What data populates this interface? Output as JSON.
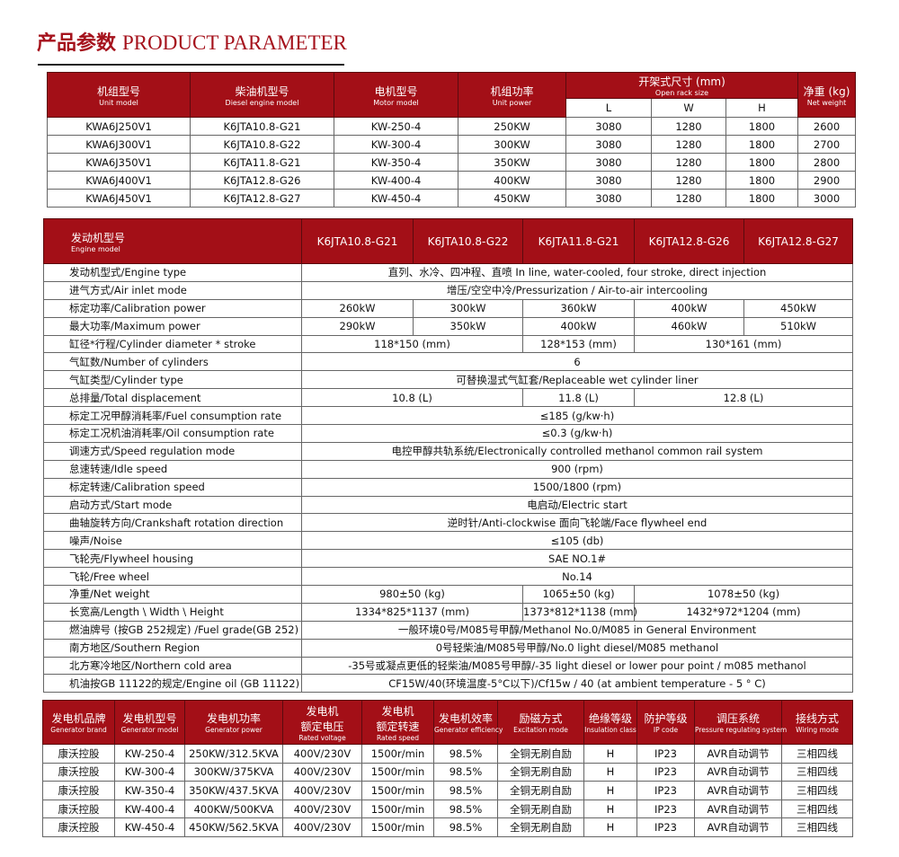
{
  "title": {
    "cn": "产品参数",
    "en": "PRODUCT PARAMETER"
  },
  "colors": {
    "accent": "#a30f17"
  },
  "unit_table": {
    "headers": [
      {
        "cn": "机组型号",
        "en": "Unit model"
      },
      {
        "cn": "柴油机型号",
        "en": "Diesel engine model"
      },
      {
        "cn": "电机型号",
        "en": "Motor model"
      },
      {
        "cn": "机组功率",
        "en": "Unit power"
      },
      {
        "cn": "开架式尺寸 (mm)",
        "en": "Open rack size"
      },
      {
        "cn": "净重 (kg)",
        "en": "Net weight"
      }
    ],
    "sub_headers": [
      "L",
      "W",
      "H"
    ],
    "rows": [
      [
        "KWA6J250V1",
        "K6JTA10.8-G21",
        "KW-250-4",
        "250KW",
        "3080",
        "1280",
        "1800",
        "2600"
      ],
      [
        "KWA6J300V1",
        "K6JTA10.8-G22",
        "KW-300-4",
        "300KW",
        "3080",
        "1280",
        "1800",
        "2700"
      ],
      [
        "KWA6J350V1",
        "K6JTA11.8-G21",
        "KW-350-4",
        "350KW",
        "3080",
        "1280",
        "1800",
        "2800"
      ],
      [
        "KWA6J400V1",
        "K6JTA12.8-G26",
        "KW-400-4",
        "400KW",
        "3080",
        "1280",
        "1800",
        "2900"
      ],
      [
        "KWA6J450V1",
        "K6JTA12.8-G27",
        "KW-450-4",
        "450KW",
        "3080",
        "1280",
        "1800",
        "3000"
      ]
    ]
  },
  "engine_table": {
    "header": {
      "cn": "发动机型号",
      "en": "Engine model"
    },
    "models": [
      "K6JTA10.8-G21",
      "K6JTA10.8-G22",
      "K6JTA11.8-G21",
      "K6JTA12.8-G26",
      "K6JTA12.8-G27"
    ],
    "rows": [
      {
        "label": "发动机型式/Engine type",
        "value": "直列、水冷、四冲程、直喷  In line, water-cooled, four stroke, direct injection"
      },
      {
        "label": "进气方式/Air inlet mode",
        "value": "增压/空空中冷/Pressurization / Air-to-air intercooling"
      },
      {
        "label": "标定功率/Calibration power",
        "values": [
          "260kW",
          "300kW",
          "360kW",
          "400kW",
          "450kW"
        ]
      },
      {
        "label": "最大功率/Maximum power",
        "values": [
          "290kW",
          "350kW",
          "400kW",
          "460kW",
          "510kW"
        ]
      },
      {
        "label": "缸径*行程/Cylinder diameter * stroke",
        "groups": [
          "118*150 (mm)",
          "128*153 (mm)",
          "130*161 (mm)"
        ]
      },
      {
        "label": "气缸数/Number of cylinders",
        "value": "6"
      },
      {
        "label": "气缸类型/Cylinder type",
        "value": "可替换湿式气缸套/Replaceable wet cylinder liner"
      },
      {
        "label": "总排量/Total displacement",
        "groups": [
          "10.8 (L)",
          "11.8 (L)",
          "12.8 (L)"
        ]
      },
      {
        "label": "标定工况甲醇消耗率/Fuel consumption rate",
        "value": "≤185 (g/kw·h)"
      },
      {
        "label": "标定工况机油消耗率/Oil consumption rate",
        "value": "≤0.3 (g/kw·h)"
      },
      {
        "label": "调速方式/Speed regulation mode",
        "value": "电控甲醇共轨系统/Electronically controlled methanol common rail system"
      },
      {
        "label": "怠速转速/Idle speed",
        "value": "900 (rpm)"
      },
      {
        "label": "标定转速/Calibration speed",
        "value": "1500/1800 (rpm)"
      },
      {
        "label": "启动方式/Start mode",
        "value": "电启动/Electric start"
      },
      {
        "label": "曲轴旋转方向/Crankshaft rotation direction",
        "value": "逆时针/Anti-clockwise 面向飞轮端/Face flywheel end"
      },
      {
        "label": "噪声/Noise",
        "value": "≤105 (db)"
      },
      {
        "label": "飞轮壳/Flywheel housing",
        "value": "SAE NO.1#"
      },
      {
        "label": "飞轮/Free wheel",
        "value": "No.14"
      },
      {
        "label": "净重/Net weight",
        "groups": [
          "980±50 (kg)",
          "1065±50 (kg)",
          "1078±50 (kg)"
        ]
      },
      {
        "label": "长宽高/Length \\ Width \\ Height",
        "groups": [
          "1334*825*1137 (mm)",
          "1373*812*1138 (mm)",
          "1432*972*1204 (mm)"
        ]
      },
      {
        "label": "燃油牌号 (按GB 252规定) /Fuel grade(GB 252)",
        "value": "一般环境0号/M085号甲醇/Methanol No.0/M085 in General Environment"
      },
      {
        "label": "南方地区/Southern Region",
        "value": "0号轻柴油/M085号甲醇/No.0 light diesel/M085 methanol"
      },
      {
        "label": "北方寒冷地区/Northern cold area",
        "value": "-35号或凝点更低的轻柴油/M085号甲醇/-35 light diesel or lower pour point / m085 methanol"
      },
      {
        "label": "机油按GB 11122的规定/Engine oil  (GB 11122)",
        "value": "CF15W/40(环境温度-5°C以下)/Cf15w / 40 (at ambient temperature - 5 ° C)"
      }
    ]
  },
  "generator_table": {
    "headers": [
      {
        "cn": "发电机品牌",
        "en": "Generator brand"
      },
      {
        "cn": "发电机型号",
        "en": "Generator model"
      },
      {
        "cn": "发电机功率",
        "en": "Generator power"
      },
      {
        "cn": "发电机\n额定电压",
        "en": "Rated voltage"
      },
      {
        "cn": "发电机\n额定转速",
        "en": "Rated speed"
      },
      {
        "cn": "发电机效率",
        "en": "Generator efficiency"
      },
      {
        "cn": "励磁方式",
        "en": "Excitation mode"
      },
      {
        "cn": "绝缘等级",
        "en": "Insulation class"
      },
      {
        "cn": "防护等级",
        "en": "IP code"
      },
      {
        "cn": "调压系统",
        "en": "Pressure regulating system"
      },
      {
        "cn": "接线方式",
        "en": "Wiring mode"
      }
    ],
    "rows": [
      [
        "康沃控股",
        "KW-250-4",
        "250KW/312.5KVA",
        "400V/230V",
        "1500r/min",
        "98.5%",
        "全铜无刷自励",
        "H",
        "IP23",
        "AVR自动调节",
        "三相四线"
      ],
      [
        "康沃控股",
        "KW-300-4",
        "300KW/375KVA",
        "400V/230V",
        "1500r/min",
        "98.5%",
        "全铜无刷自励",
        "H",
        "IP23",
        "AVR自动调节",
        "三相四线"
      ],
      [
        "康沃控股",
        "KW-350-4",
        "350KW/437.5KVA",
        "400V/230V",
        "1500r/min",
        "98.5%",
        "全铜无刷自励",
        "H",
        "IP23",
        "AVR自动调节",
        "三相四线"
      ],
      [
        "康沃控股",
        "KW-400-4",
        "400KW/500KVA",
        "400V/230V",
        "1500r/min",
        "98.5%",
        "全铜无刷自励",
        "H",
        "IP23",
        "AVR自动调节",
        "三相四线"
      ],
      [
        "康沃控股",
        "KW-450-4",
        "450KW/562.5KVA",
        "400V/230V",
        "1500r/min",
        "98.5%",
        "全铜无刷自励",
        "H",
        "IP23",
        "AVR自动调节",
        "三相四线"
      ]
    ]
  }
}
